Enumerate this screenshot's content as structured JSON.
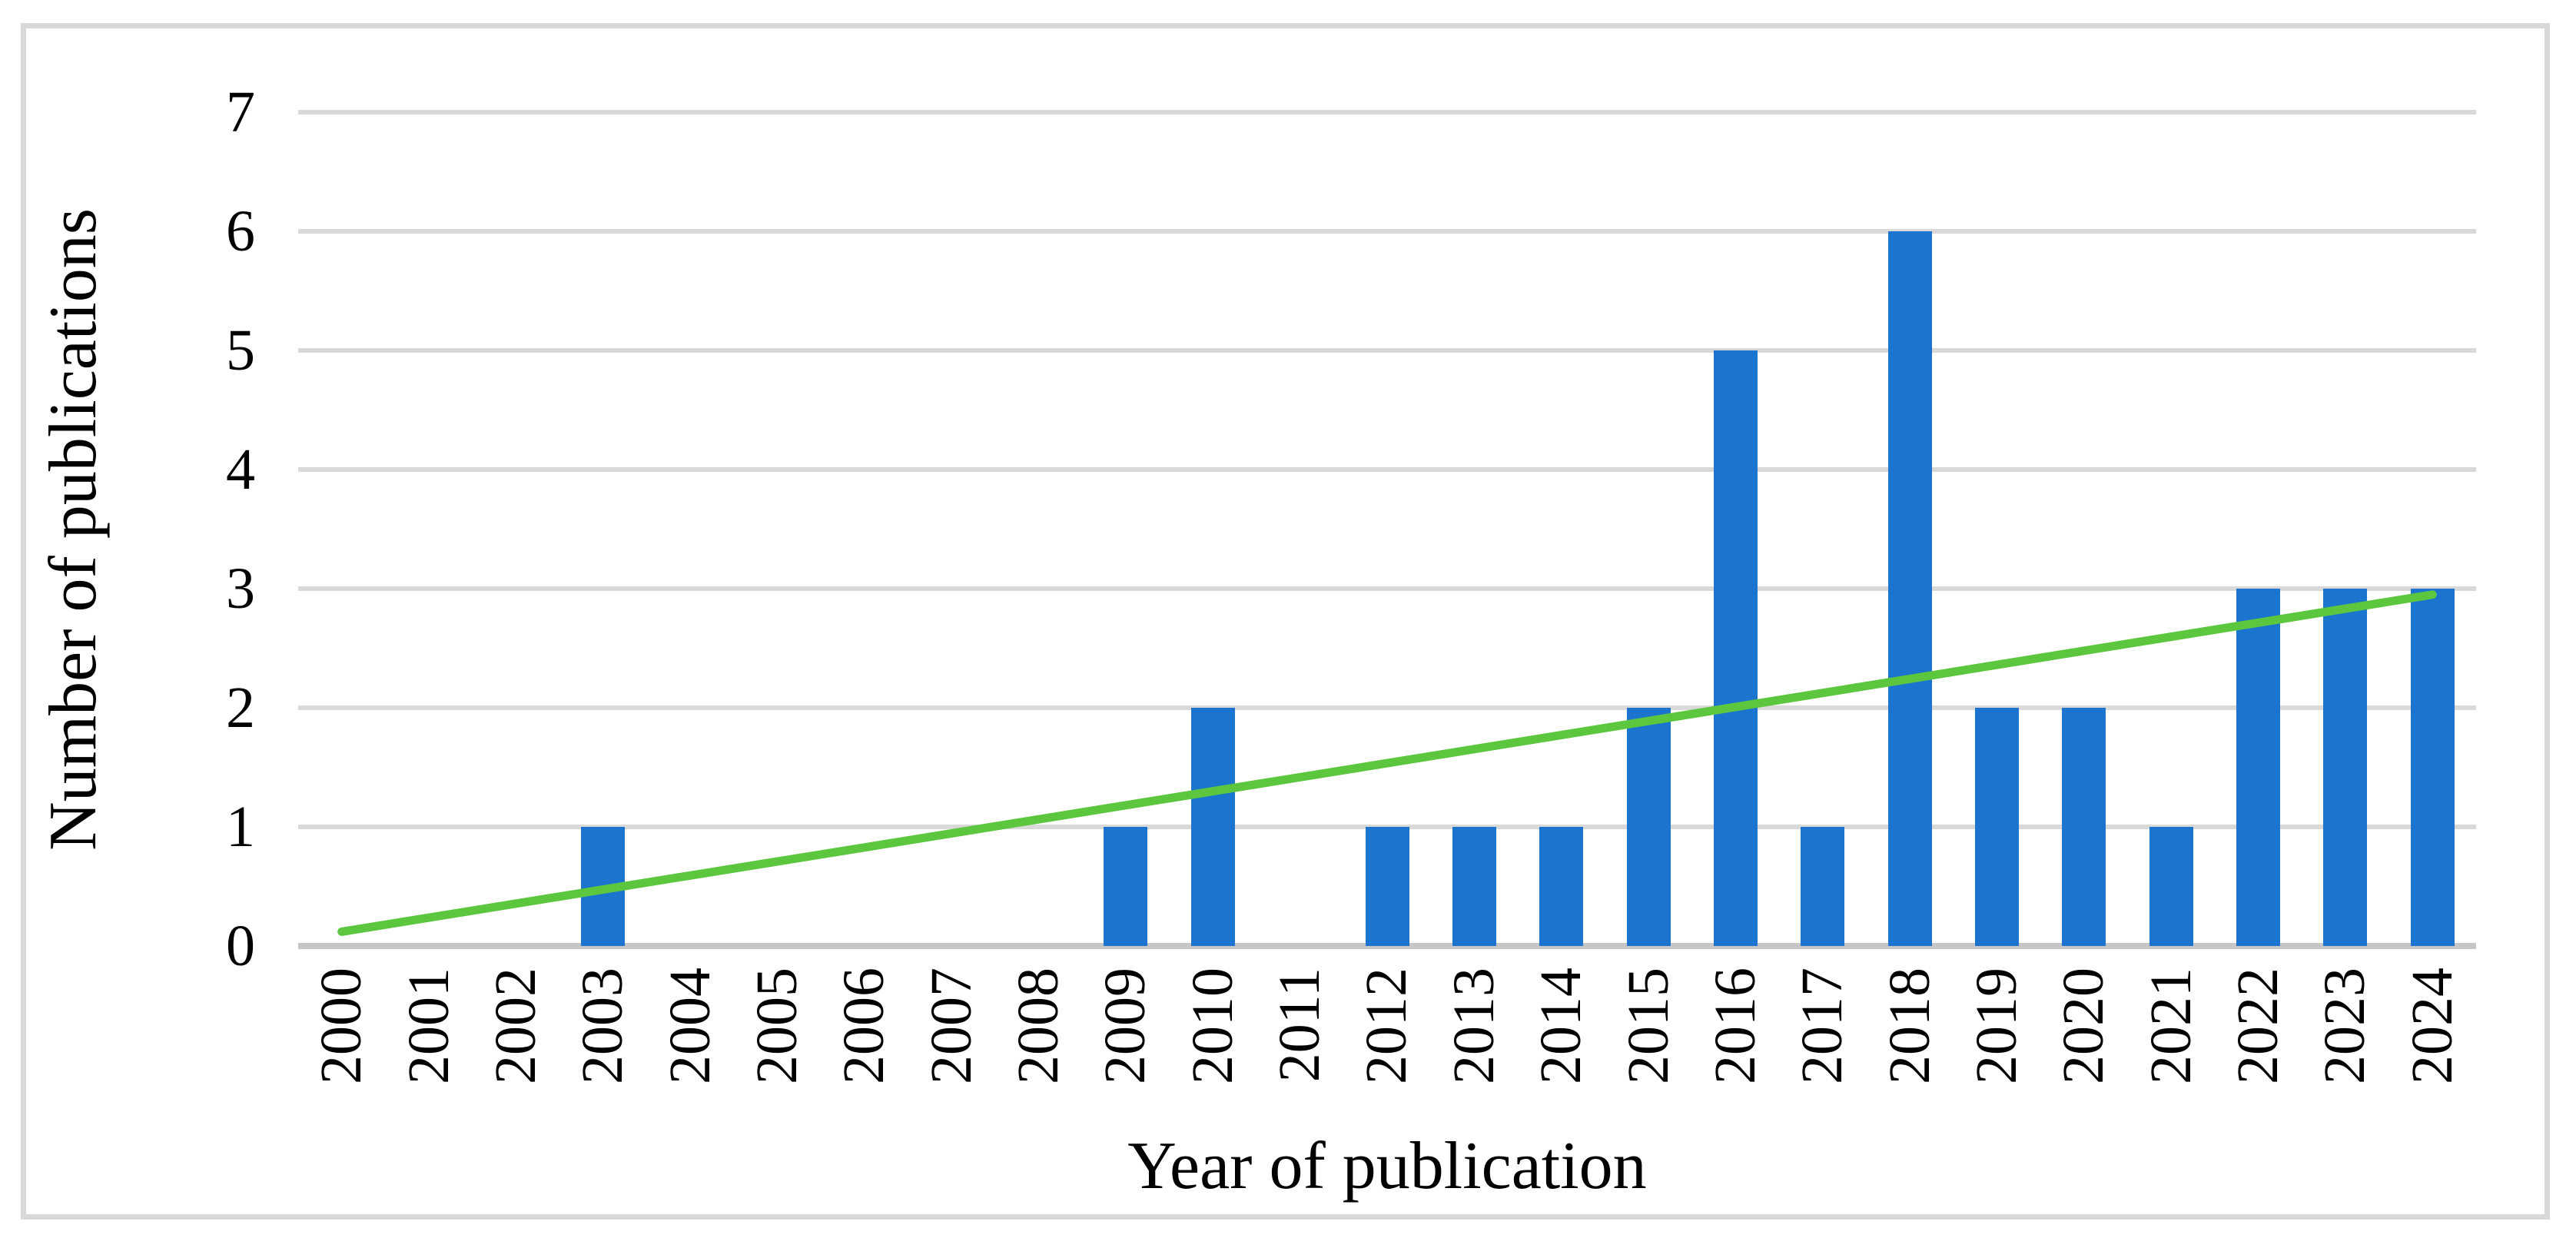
{
  "figure": {
    "background_color": "#FFFFFF",
    "border_color": "#D9D9D9"
  },
  "chart_data": {
    "type": "bar",
    "title": "",
    "xlabel": "Year of publication",
    "ylabel": "Number of publications",
    "categories": [
      "2000",
      "2001",
      "2002",
      "2003",
      "2004",
      "2005",
      "2006",
      "2007",
      "2008",
      "2009",
      "2010",
      "2011",
      "2012",
      "2013",
      "2014",
      "2015",
      "2016",
      "2017",
      "2018",
      "2019",
      "2020",
      "2021",
      "2022",
      "2023",
      "2024"
    ],
    "values": [
      0,
      0,
      0,
      1,
      0,
      0,
      0,
      0,
      0,
      1,
      2,
      0,
      1,
      1,
      1,
      2,
      5,
      1,
      6,
      2,
      2,
      1,
      3,
      3,
      3
    ],
    "ylim": [
      0,
      7
    ],
    "yticks": [
      "0",
      "1",
      "2",
      "3",
      "4",
      "5",
      "6",
      "7"
    ],
    "grid": true,
    "legend_position": "none",
    "bar_color": "#1B74CE",
    "gridline_color": "#D9D9D9",
    "axis_line_color": "#C6C6C6",
    "text_color": "#000000",
    "trendline": {
      "type": "linear",
      "color": "#5CC73E",
      "start": {
        "category": "2000",
        "value": 0.12
      },
      "end": {
        "category": "2024",
        "value": 2.95
      }
    }
  }
}
